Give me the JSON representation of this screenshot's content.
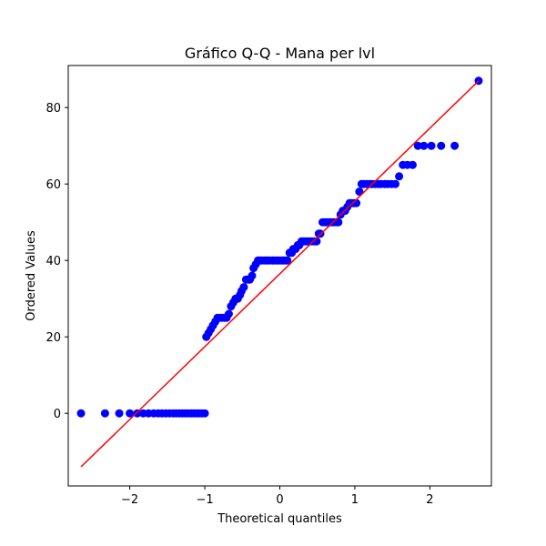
{
  "chart_data": {
    "type": "scatter",
    "title": "Gráfico Q-Q - Mana per lvl",
    "xlabel": "Theoretical quantiles",
    "ylabel": "Ordered Values",
    "xlim": [
      -2.82,
      2.82
    ],
    "ylim": [
      -19,
      91
    ],
    "xticks": [
      -2,
      -1,
      0,
      1,
      2
    ],
    "yticks": [
      0,
      20,
      40,
      60,
      80
    ],
    "grid": false,
    "colors": {
      "points": "#0000ff",
      "fit_line": "#ff0000"
    },
    "fit_line": {
      "x": [
        -2.65,
        2.65
      ],
      "y": [
        -14,
        87
      ]
    },
    "series": [
      {
        "values": [
          [
            -2.65,
            0
          ],
          [
            -2.33,
            0
          ],
          [
            -2.14,
            0
          ],
          [
            -2.0,
            0
          ],
          [
            -1.9,
            0
          ],
          [
            -1.82,
            0
          ],
          [
            -1.75,
            0
          ],
          [
            -1.68,
            0
          ],
          [
            -1.62,
            0
          ],
          [
            -1.57,
            0
          ],
          [
            -1.52,
            0
          ],
          [
            -1.47,
            0
          ],
          [
            -1.42,
            0
          ],
          [
            -1.38,
            0
          ],
          [
            -1.34,
            0
          ],
          [
            -1.3,
            0
          ],
          [
            -1.26,
            0
          ],
          [
            -1.22,
            0
          ],
          [
            -1.18,
            0
          ],
          [
            -1.15,
            0
          ],
          [
            -1.11,
            0
          ],
          [
            -1.08,
            0
          ],
          [
            -1.04,
            0
          ],
          [
            -1.0,
            0
          ],
          [
            -0.98,
            20
          ],
          [
            -0.95,
            21
          ],
          [
            -0.92,
            22
          ],
          [
            -0.89,
            23
          ],
          [
            -0.86,
            24
          ],
          [
            -0.83,
            25
          ],
          [
            -0.8,
            25
          ],
          [
            -0.77,
            25
          ],
          [
            -0.74,
            25
          ],
          [
            -0.71,
            25
          ],
          [
            -0.68,
            26
          ],
          [
            -0.65,
            28
          ],
          [
            -0.62,
            29
          ],
          [
            -0.59,
            30
          ],
          [
            -0.56,
            30
          ],
          [
            -0.53,
            31
          ],
          [
            -0.51,
            32
          ],
          [
            -0.48,
            33
          ],
          [
            -0.45,
            35
          ],
          [
            -0.42,
            35
          ],
          [
            -0.4,
            35
          ],
          [
            -0.37,
            36
          ],
          [
            -0.35,
            38
          ],
          [
            -0.32,
            39
          ],
          [
            -0.29,
            40
          ],
          [
            -0.26,
            40
          ],
          [
            -0.24,
            40
          ],
          [
            -0.21,
            40
          ],
          [
            -0.18,
            40
          ],
          [
            -0.16,
            40
          ],
          [
            -0.13,
            40
          ],
          [
            -0.1,
            40
          ],
          [
            -0.08,
            40
          ],
          [
            -0.05,
            40
          ],
          [
            -0.03,
            40
          ],
          [
            0.0,
            40
          ],
          [
            0.03,
            40
          ],
          [
            0.05,
            40
          ],
          [
            0.08,
            40
          ],
          [
            0.1,
            40
          ],
          [
            0.13,
            42
          ],
          [
            0.16,
            42
          ],
          [
            0.18,
            43
          ],
          [
            0.21,
            43
          ],
          [
            0.24,
            44
          ],
          [
            0.26,
            44
          ],
          [
            0.29,
            45
          ],
          [
            0.32,
            45
          ],
          [
            0.35,
            45
          ],
          [
            0.37,
            45
          ],
          [
            0.4,
            45
          ],
          [
            0.43,
            45
          ],
          [
            0.46,
            45
          ],
          [
            0.49,
            45
          ],
          [
            0.52,
            47
          ],
          [
            0.54,
            47
          ],
          [
            0.57,
            50
          ],
          [
            0.6,
            50
          ],
          [
            0.63,
            50
          ],
          [
            0.66,
            50
          ],
          [
            0.69,
            50
          ],
          [
            0.72,
            50
          ],
          [
            0.75,
            50
          ],
          [
            0.78,
            50
          ],
          [
            0.81,
            52
          ],
          [
            0.84,
            53
          ],
          [
            0.87,
            53
          ],
          [
            0.9,
            54
          ],
          [
            0.93,
            55
          ],
          [
            0.96,
            55
          ],
          [
            0.99,
            55
          ],
          [
            1.02,
            55
          ],
          [
            1.06,
            58
          ],
          [
            1.09,
            60
          ],
          [
            1.12,
            60
          ],
          [
            1.16,
            60
          ],
          [
            1.2,
            60
          ],
          [
            1.23,
            60
          ],
          [
            1.27,
            60
          ],
          [
            1.31,
            60
          ],
          [
            1.35,
            60
          ],
          [
            1.4,
            60
          ],
          [
            1.44,
            60
          ],
          [
            1.49,
            60
          ],
          [
            1.54,
            60
          ],
          [
            1.59,
            62
          ],
          [
            1.64,
            65
          ],
          [
            1.7,
            65
          ],
          [
            1.77,
            65
          ],
          [
            1.84,
            70
          ],
          [
            1.92,
            70
          ],
          [
            2.02,
            70
          ],
          [
            2.15,
            70
          ],
          [
            2.33,
            70
          ],
          [
            2.65,
            87
          ]
        ]
      }
    ]
  }
}
